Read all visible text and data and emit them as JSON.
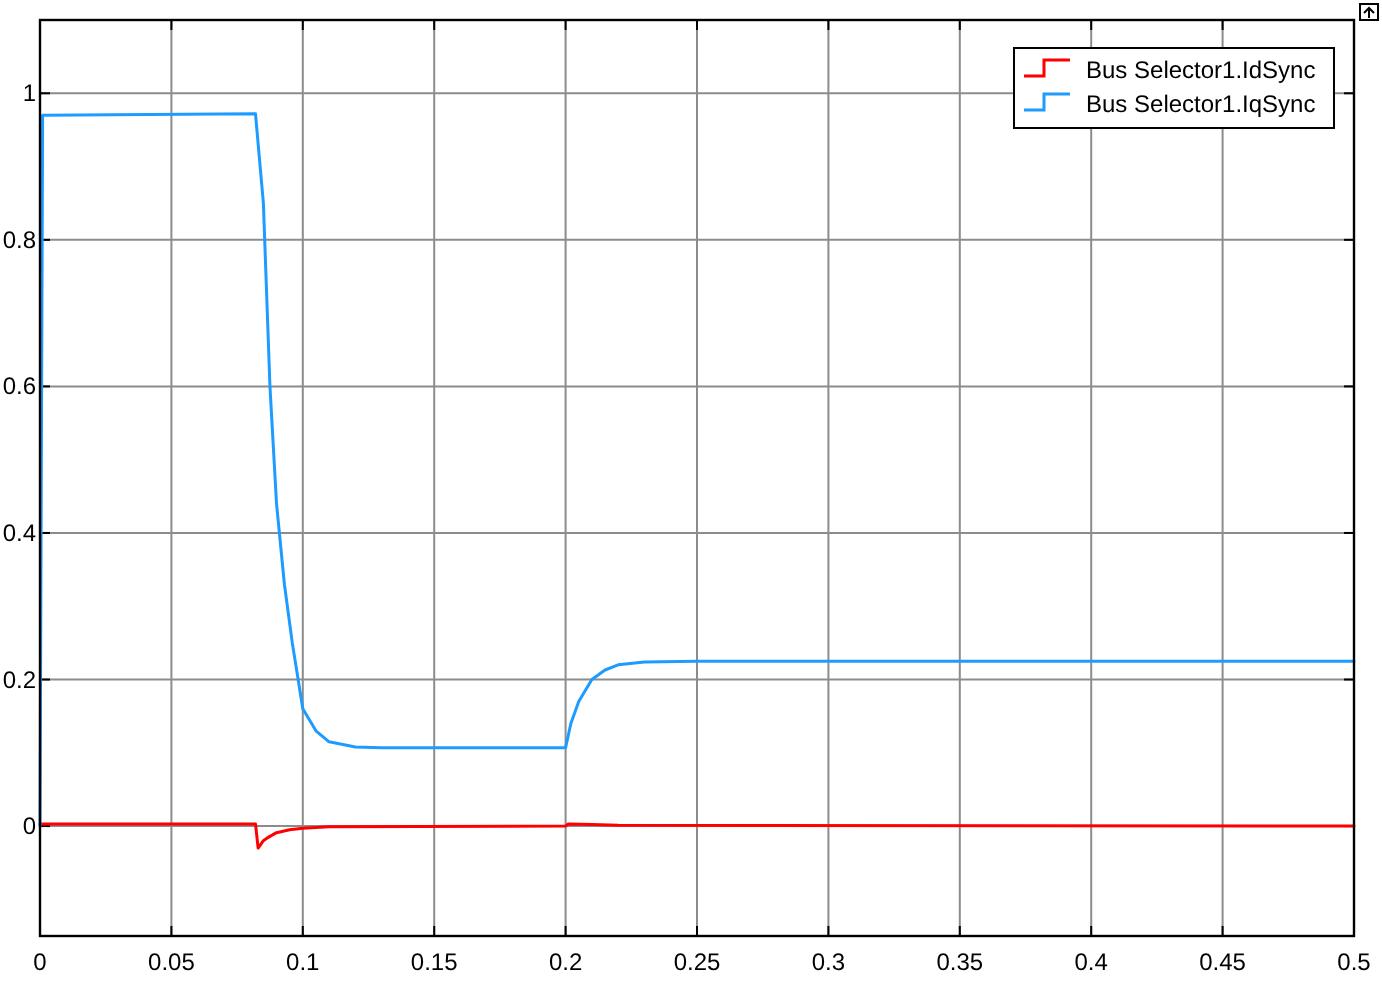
{
  "chart_data": {
    "type": "line",
    "xlim": [
      0,
      0.5
    ],
    "ylim": [
      -0.15,
      1.1
    ],
    "xticks": [
      0,
      0.05,
      0.1,
      0.15,
      0.2,
      0.25,
      0.3,
      0.35,
      0.4,
      0.45,
      0.5
    ],
    "yticks": [
      0,
      0.2,
      0.4,
      0.6,
      0.8,
      1
    ],
    "grid": true,
    "legend": "top right",
    "marker": "none",
    "line_style": "solid",
    "series": [
      {
        "name": "Bus Selector1.IdSync",
        "color": "#ff0000",
        "x": [
          0,
          0.082,
          0.083,
          0.085,
          0.087,
          0.09,
          0.095,
          0.1,
          0.11,
          0.2,
          0.201,
          0.21,
          0.22,
          0.5
        ],
        "values": [
          0.003,
          0.003,
          -0.03,
          -0.02,
          -0.015,
          -0.009,
          -0.005,
          -0.003,
          -0.001,
          0,
          0.003,
          0.002,
          0.001,
          0
        ]
      },
      {
        "name": "Bus Selector1.IqSync",
        "color": "#1e9bff",
        "x": [
          0,
          0.001,
          0.082,
          0.085,
          0.0875,
          0.09,
          0.093,
          0.096,
          0.1,
          0.105,
          0.11,
          0.12,
          0.13,
          0.2,
          0.202,
          0.205,
          0.21,
          0.215,
          0.22,
          0.23,
          0.25,
          0.5
        ],
        "values": [
          0,
          0.97,
          0.972,
          0.85,
          0.6,
          0.44,
          0.33,
          0.25,
          0.16,
          0.13,
          0.115,
          0.108,
          0.107,
          0.107,
          0.14,
          0.17,
          0.2,
          0.213,
          0.22,
          0.224,
          0.225,
          0.225
        ]
      }
    ]
  }
}
